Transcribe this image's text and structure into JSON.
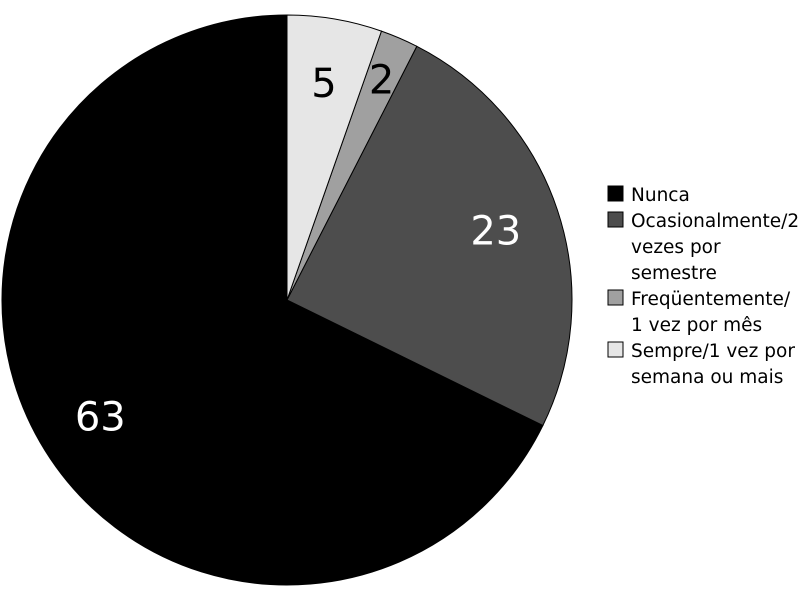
{
  "chart_data": {
    "type": "pie",
    "categories": [
      "Nunca",
      "Ocasionalmente/2 vezes por semestre",
      "Freqüentemente/ 1 vez por mês",
      "Sempre/1 vez por semana ou mais"
    ],
    "values": [
      63,
      23,
      2,
      5
    ],
    "data_labels": [
      "63",
      "23",
      "2",
      "5"
    ],
    "colors": [
      "#000000",
      "#4d4d4d",
      "#a0a0a0",
      "#e6e6e6"
    ],
    "label_colors": [
      "#ffffff",
      "#ffffff",
      "#000000",
      "#000000"
    ],
    "title": "",
    "legend": {
      "placement": "right",
      "entries": [
        {
          "lines": [
            "Nunca"
          ]
        },
        {
          "lines": [
            "Ocasionalmente/2",
            "vezes por",
            "semestre"
          ]
        },
        {
          "lines": [
            "Freqüentemente/",
            "1 vez por mês"
          ]
        },
        {
          "lines": [
            "Sempre/1 vez por",
            "semana ou mais"
          ]
        }
      ]
    }
  }
}
